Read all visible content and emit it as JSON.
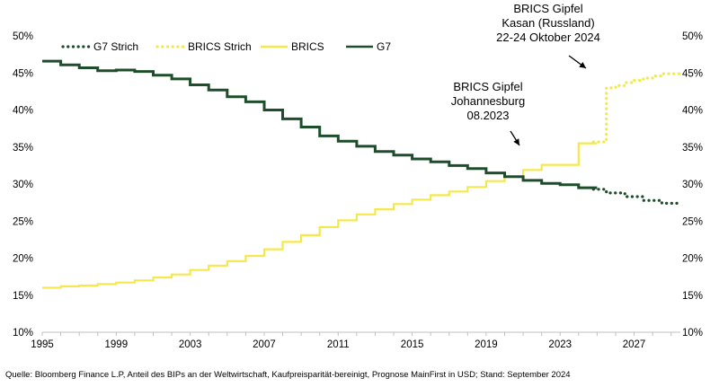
{
  "chart_data": {
    "type": "line",
    "title": "",
    "xlabel": "",
    "ylabel": "",
    "xlim": [
      1995,
      2029.5
    ],
    "ylim": [
      0.1,
      0.5
    ],
    "x_ticks": [
      "1995",
      "1999",
      "2003",
      "2007",
      "2011",
      "2015",
      "2019",
      "2023",
      "2027"
    ],
    "y_ticks": [
      "10%",
      "15%",
      "20%",
      "25%",
      "30%",
      "35%",
      "40%",
      "45%",
      "50%"
    ],
    "legend_position": "top-left",
    "legend": [
      "G7 Strich",
      "BRICS Strich",
      "BRICS",
      "G7"
    ],
    "series": [
      {
        "name": "G7",
        "style": "solid-step",
        "color": "#1e4d2b",
        "x": [
          1995,
          1996,
          1997,
          1998,
          1999,
          2000,
          2001,
          2002,
          2003,
          2004,
          2005,
          2006,
          2007,
          2008,
          2009,
          2010,
          2011,
          2012,
          2013,
          2014,
          2015,
          2016,
          2017,
          2018,
          2019,
          2020,
          2021,
          2022,
          2023,
          2024
        ],
        "y": [
          0.466,
          0.461,
          0.457,
          0.453,
          0.454,
          0.452,
          0.447,
          0.442,
          0.434,
          0.427,
          0.418,
          0.411,
          0.4,
          0.388,
          0.377,
          0.365,
          0.358,
          0.351,
          0.344,
          0.339,
          0.334,
          0.33,
          0.325,
          0.321,
          0.315,
          0.31,
          0.305,
          0.301,
          0.299,
          0.295
        ]
      },
      {
        "name": "G7 Strich",
        "style": "dotted-step",
        "color": "#1e4d2b",
        "x": [
          2024.8,
          2025.5,
          2026.5,
          2027.5,
          2028.5,
          2029.5
        ],
        "y": [
          0.293,
          0.288,
          0.283,
          0.278,
          0.274,
          0.274
        ]
      },
      {
        "name": "BRICS",
        "style": "solid-step",
        "color": "#f5e84d",
        "x": [
          1995,
          1996,
          1997,
          1998,
          1999,
          2000,
          2001,
          2002,
          2003,
          2004,
          2005,
          2006,
          2007,
          2008,
          2009,
          2010,
          2011,
          2012,
          2013,
          2014,
          2015,
          2016,
          2017,
          2018,
          2019,
          2020,
          2021,
          2022,
          2023,
          2024
        ],
        "y": [
          0.16,
          0.162,
          0.163,
          0.165,
          0.167,
          0.17,
          0.174,
          0.178,
          0.184,
          0.19,
          0.196,
          0.203,
          0.212,
          0.222,
          0.231,
          0.242,
          0.251,
          0.259,
          0.266,
          0.273,
          0.279,
          0.285,
          0.29,
          0.296,
          0.304,
          0.31,
          0.319,
          0.326,
          0.326,
          0.355
        ]
      },
      {
        "name": "BRICS Strich",
        "style": "dotted-step",
        "color": "#f5e84d",
        "x": [
          2024.8,
          2025.5,
          2026.0,
          2026.5,
          2027.0,
          2027.5,
          2028.0,
          2028.5,
          2029.5
        ],
        "y": [
          0.357,
          0.43,
          0.433,
          0.437,
          0.44,
          0.443,
          0.446,
          0.449,
          0.45
        ]
      }
    ],
    "annotations": [
      {
        "lines": [
          "BRICS Gipfel",
          "Johannesburg",
          "08.2023"
        ],
        "target_x": 2021.5,
        "target_y": 0.32
      },
      {
        "lines": [
          "BRICS Gipfel",
          "Kasan (Russland)",
          "22-24 Oktober 2024"
        ],
        "target_x": 2025.8,
        "target_y": 0.445
      }
    ]
  },
  "source_text": "Quelle: Bloomberg Finance L.P, Anteil des BIPs an der Weltwirtschaft, Kaufpreisparität-bereinigt, Prognose MainFirst in USD; Stand: September 2024"
}
